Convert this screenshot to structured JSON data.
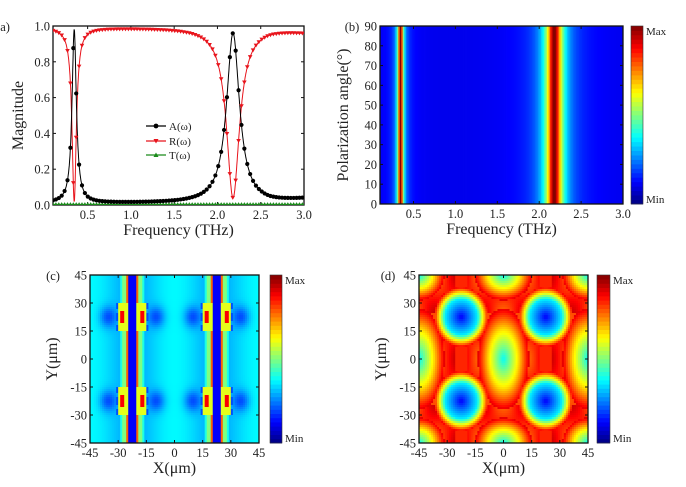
{
  "chart_data": [
    {
      "panel": "(a)",
      "type": "line",
      "xlabel": "Frequency (THz)",
      "ylabel": "Magnitude",
      "xlim": [
        0.1,
        3.0
      ],
      "ylim": [
        0.0,
        1.0
      ],
      "xticks": [
        "0.5",
        "1.0",
        "1.5",
        "2.0",
        "2.5",
        "3.0"
      ],
      "xtick_values": [
        0.5,
        1.0,
        1.5,
        2.0,
        2.5,
        3.0
      ],
      "yticks": [
        "0.0",
        "0.2",
        "0.4",
        "0.6",
        "0.8",
        "1.0"
      ],
      "ytick_values": [
        0.0,
        0.2,
        0.4,
        0.6,
        0.8,
        1.0
      ],
      "legend": {
        "position": "center",
        "entries": [
          "A(ω)",
          "R(ω)",
          "T(ω)"
        ]
      },
      "series": [
        {
          "name": "A(ω)",
          "color": "#000000",
          "marker": "circle",
          "resonances": [
            {
              "f0": 0.345,
              "peak": 0.97,
              "hw": 0.03
            },
            {
              "f0": 2.18,
              "peak": 0.95,
              "hw": 0.09
            }
          ],
          "baseline": 0.01
        },
        {
          "name": "R(ω)",
          "color": "#e8141c",
          "marker": "triangle-down",
          "note": "R = 1 - A"
        },
        {
          "name": "T(ω)",
          "color": "#1a8a1a",
          "marker": "triangle-up",
          "value": 0.0
        }
      ]
    },
    {
      "panel": "(b)",
      "type": "heatmap",
      "xlabel": "Frequency (THz)",
      "ylabel": "Polarization angle(°)",
      "xlim": [
        0.1,
        3.0
      ],
      "ylim": [
        0,
        90
      ],
      "xticks": [
        "0.5",
        "1.0",
        "1.5",
        "2.0",
        "2.5",
        "3.0"
      ],
      "xtick_values": [
        0.5,
        1.0,
        1.5,
        2.0,
        2.5,
        3.0
      ],
      "yticks": [
        "0",
        "10",
        "20",
        "30",
        "40",
        "50",
        "60",
        "70",
        "80",
        "90"
      ],
      "ytick_values": [
        0,
        10,
        20,
        30,
        40,
        50,
        60,
        70,
        80,
        90
      ],
      "colorbar": {
        "max_label": "Max",
        "min_label": "Min"
      },
      "bands_THz": [
        0.345,
        2.18
      ],
      "note": "absorption independent of polarization angle"
    },
    {
      "panel": "(c)",
      "type": "heatmap",
      "xlabel": "X(μm)",
      "ylabel": "Y(μm)",
      "xlim": [
        -45,
        45
      ],
      "ylim": [
        -45,
        45
      ],
      "xticks": [
        "-45",
        "-30",
        "-15",
        "0",
        "15",
        "30",
        "45"
      ],
      "xtick_values": [
        -45,
        -30,
        -15,
        0,
        15,
        30,
        45
      ],
      "yticks": [
        "-45",
        "-30",
        "-15",
        "0",
        "15",
        "30",
        "45"
      ],
      "ytick_values": [
        -45,
        -30,
        -15,
        0,
        15,
        30,
        45
      ],
      "colorbar": {
        "max_label": "Max",
        "min_label": "Min"
      },
      "hotspots_um": [
        [
          -22.5,
          22.5
        ],
        [
          22.5,
          22.5
        ],
        [
          -22.5,
          -22.5
        ],
        [
          22.5,
          -22.5
        ]
      ]
    },
    {
      "panel": "(d)",
      "type": "heatmap",
      "xlabel": "X(μm)",
      "ylabel": "Y(μm)",
      "xlim": [
        -45,
        45
      ],
      "ylim": [
        -45,
        45
      ],
      "xticks": [
        "-45",
        "-30",
        "-15",
        "0",
        "15",
        "30",
        "45"
      ],
      "xtick_values": [
        -45,
        -30,
        -15,
        0,
        15,
        30,
        45
      ],
      "yticks": [
        "-45",
        "-30",
        "-15",
        "0",
        "15",
        "30",
        "45"
      ],
      "ytick_values": [
        -45,
        -30,
        -15,
        0,
        15,
        30,
        45
      ],
      "colorbar": {
        "max_label": "Max",
        "min_label": "Min"
      },
      "minima_um": [
        [
          -22.5,
          22.5
        ],
        [
          22.5,
          22.5
        ],
        [
          -22.5,
          -22.5
        ],
        [
          22.5,
          -22.5
        ]
      ]
    }
  ]
}
